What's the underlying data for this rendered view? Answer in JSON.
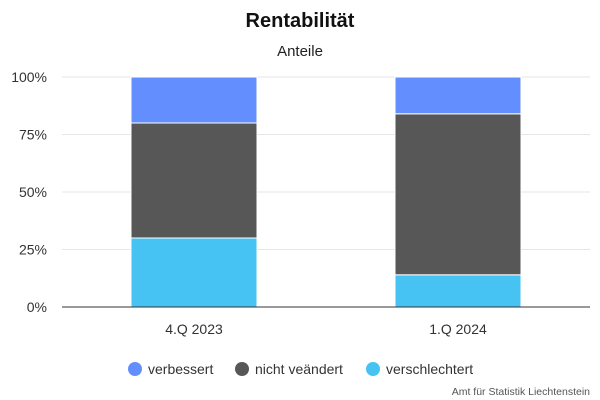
{
  "chart_data": {
    "type": "bar",
    "stacked": true,
    "title": "Rentabilität",
    "subtitle": "Anteile",
    "categories": [
      "4.Q 2023",
      "1.Q 2024"
    ],
    "series": [
      {
        "name": "verschlechtert",
        "color": "#46c3f2",
        "values": [
          30,
          14
        ]
      },
      {
        "name": "nicht veändert",
        "color": "#575757",
        "values": [
          50,
          70
        ]
      },
      {
        "name": "verbessert",
        "color": "#638ffe",
        "values": [
          20,
          16
        ]
      }
    ],
    "legend_order": [
      "verbessert",
      "nicht veändert",
      "verschlechtert"
    ],
    "y_ticks": [
      "0%",
      "25%",
      "50%",
      "75%",
      "100%"
    ],
    "ylim": [
      0,
      100
    ],
    "grid": true,
    "legend_position": "bottom",
    "credit": "Amt für Statistik Liechtenstein"
  }
}
